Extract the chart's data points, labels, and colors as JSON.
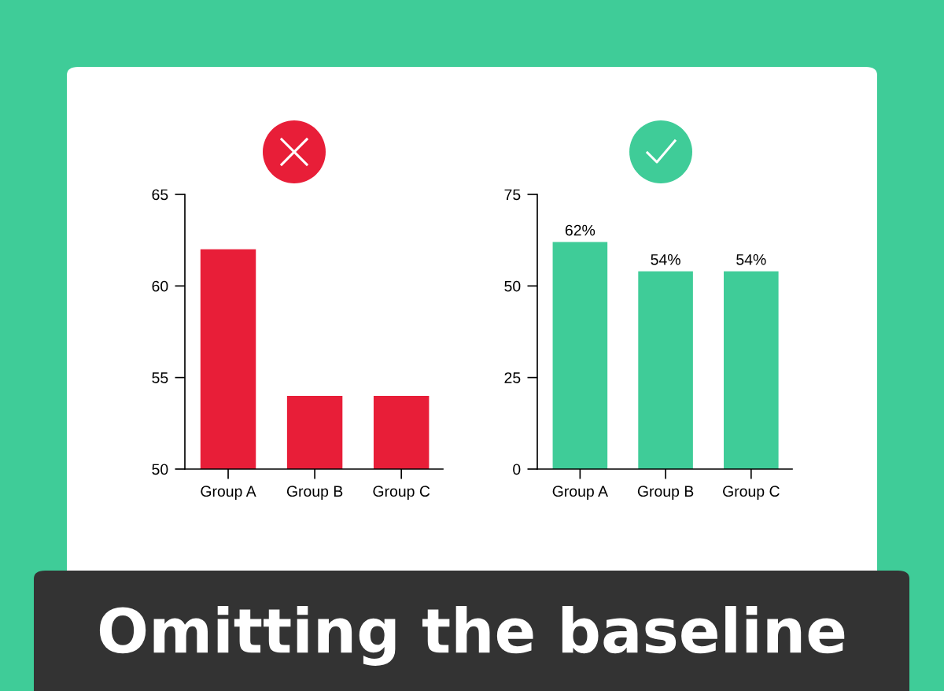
{
  "chart_data": [
    {
      "type": "bar",
      "categories": [
        "Group A",
        "Group B",
        "Group C"
      ],
      "values": [
        62,
        54,
        54
      ],
      "color": "#e81e38",
      "ylim": [
        50,
        65
      ],
      "yticks": [
        50,
        55,
        60,
        65
      ],
      "grid": false,
      "annotations": [
        "Omitting the baseline"
      ]
    },
    {
      "type": "bar",
      "categories": [
        "Group A",
        "Group B",
        "Group C"
      ],
      "values": [
        62,
        54,
        54
      ],
      "color": "#3fcc98",
      "ylim": [
        0,
        75
      ],
      "yticks": [
        0,
        25,
        50,
        75
      ],
      "grid": false,
      "value_labels": [
        "62%",
        "54%",
        "54%"
      ]
    }
  ]
}
